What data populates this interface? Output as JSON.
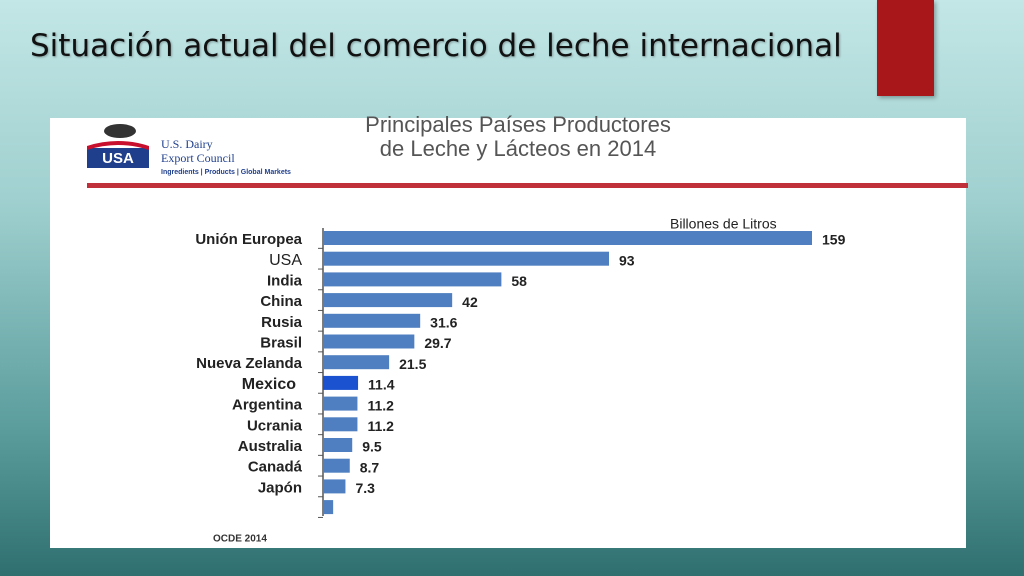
{
  "slide_title": "Situación actual del comercio de leche internacional",
  "logo": {
    "badge": "USA",
    "name_line1": "U.S. Dairy",
    "name_line2": "Export Council",
    "tagline": "Ingredients | Products | Global Markets"
  },
  "source": "OCDE 2014",
  "chart_data": {
    "type": "bar",
    "orientation": "horizontal",
    "title": [
      "Principales Países Productores",
      "de Leche y Lácteos en 2014"
    ],
    "unit_label": "Billones de Litros",
    "categories": [
      "Unión Europea",
      "USA",
      "India",
      "China",
      "Rusia",
      "Brasil",
      "Nueva Zelanda",
      "Mexico",
      "Argentina",
      "Ucrania",
      "Australia",
      "Canadá",
      "Japón",
      null
    ],
    "values": [
      159,
      93,
      58,
      42,
      31.6,
      29.7,
      21.5,
      11.4,
      11.2,
      11.2,
      9.5,
      8.7,
      7.3,
      3.3
    ],
    "value_labels": [
      "159",
      "93",
      "58",
      "42",
      "31.6",
      "29.7",
      "21.5",
      "11.4",
      "11.2",
      "11.2",
      "9.5",
      "8.7",
      "7.3",
      null
    ],
    "colors": [
      "#4f7fc0",
      "#4f7fc0",
      "#4f7fc0",
      "#4f7fc0",
      "#4f7fc0",
      "#4f7fc0",
      "#4f7fc0",
      "#1a52d0",
      "#4f7fc0",
      "#4f7fc0",
      "#4f7fc0",
      "#4f7fc0",
      "#4f7fc0",
      "#4f7fc0"
    ]
  }
}
